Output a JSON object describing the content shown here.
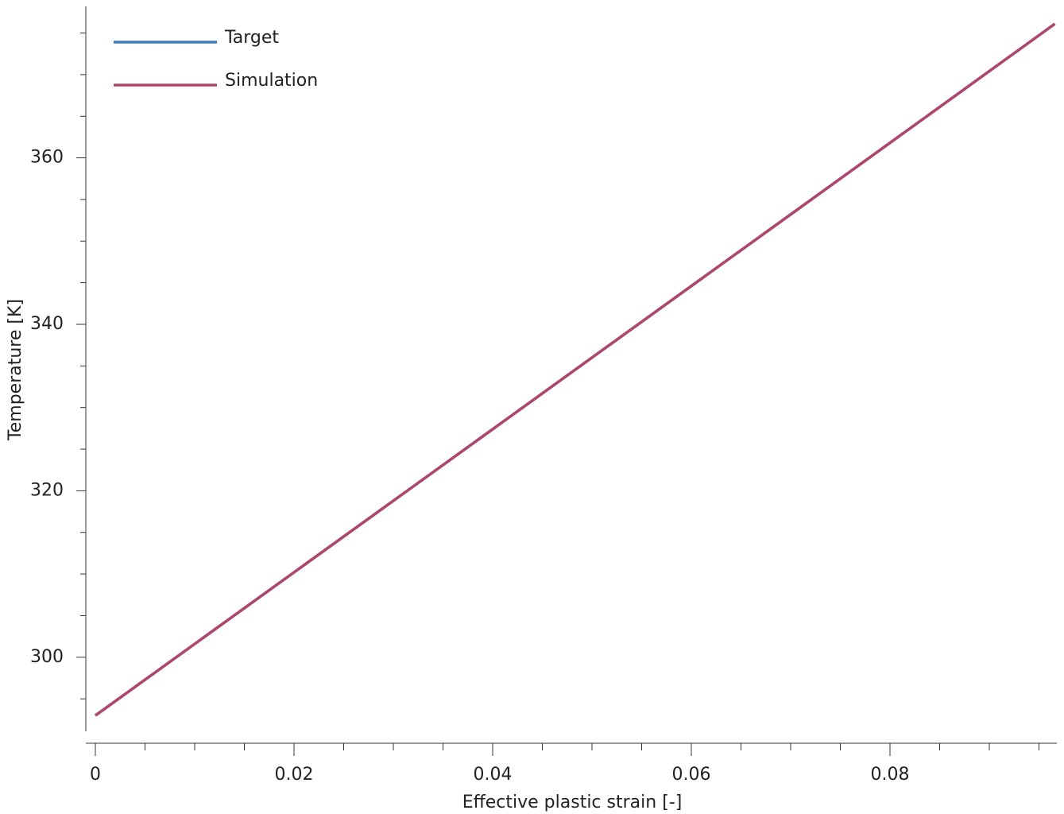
{
  "chart_data": {
    "type": "line",
    "xlabel": "Effective plastic strain [-]",
    "ylabel": "Temperature [K]",
    "x": [
      0,
      0.02,
      0.04,
      0.06,
      0.08,
      0.0966
    ],
    "series": [
      {
        "name": "Target",
        "color": "#3d7cbf",
        "values": [
          293.0,
          310.2,
          327.4,
          344.6,
          361.8,
          376.1
        ]
      },
      {
        "name": "Simulation",
        "color": "#b0476a",
        "values": [
          293.0,
          310.2,
          327.4,
          344.6,
          361.8,
          376.1
        ]
      }
    ],
    "xlim": [
      -0.00096,
      0.0968
    ],
    "ylim": [
      291.1,
      378.2
    ],
    "xticks": [
      0,
      0.02,
      0.04,
      0.06,
      0.08
    ],
    "yticks": [
      300,
      320,
      340,
      360
    ],
    "xminorticks": [
      0.005,
      0.01,
      0.015,
      0.025,
      0.03,
      0.035,
      0.045,
      0.05,
      0.055,
      0.065,
      0.07,
      0.075,
      0.085,
      0.09,
      0.095
    ],
    "yminorticks": [
      295,
      305,
      310,
      315,
      325,
      330,
      335,
      345,
      350,
      355,
      365,
      370,
      375
    ],
    "grid": false,
    "legend": "upper left"
  }
}
